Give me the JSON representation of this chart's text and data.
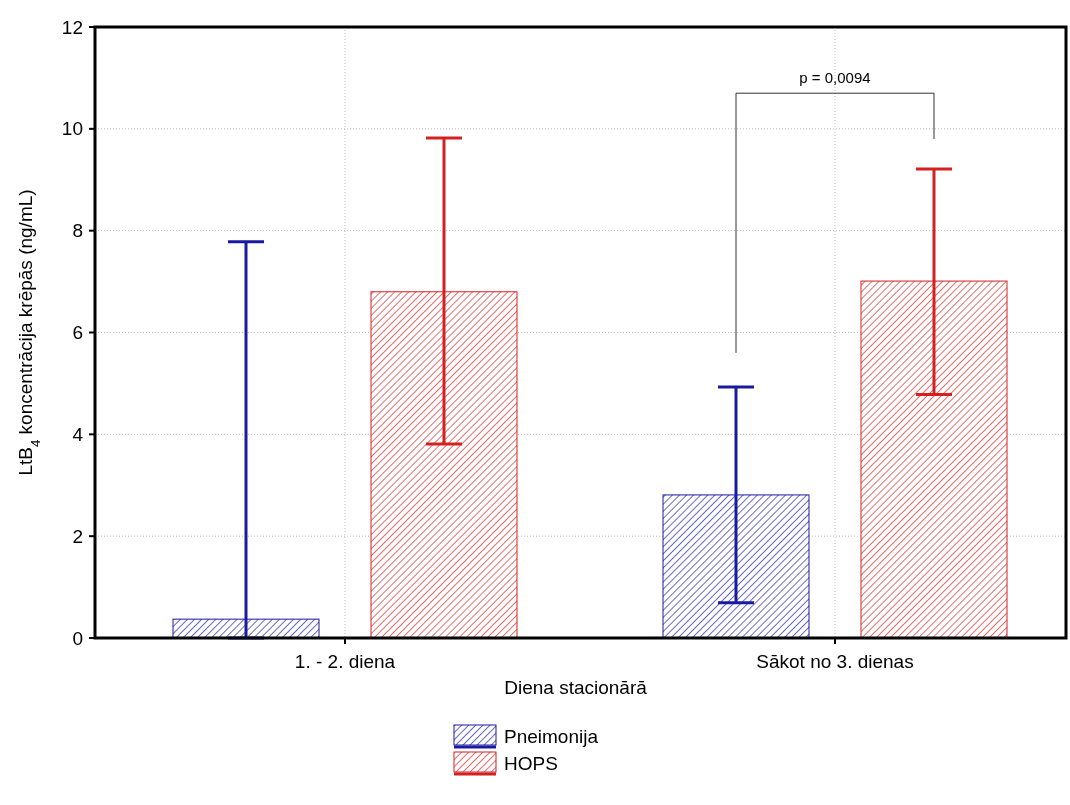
{
  "chart_data": {
    "type": "bar",
    "xlabel": "Diena stacionārā",
    "ylabel": "LtB$_{4}$ koncentrācija krēpās (ng/mL)",
    "categories": [
      "1. - 2. diena",
      "Sākot no 3. dienas"
    ],
    "series": [
      {
        "name": "Pneimonija",
        "color": "#1a1aa0",
        "values": [
          0.37,
          2.81
        ],
        "errors": [
          [
            0,
            7.78
          ],
          [
            0.69,
            4.93
          ]
        ]
      },
      {
        "name": "HOPS",
        "color": "#d42020",
        "values": [
          6.8,
          7.01
        ],
        "errors": [
          [
            3.81,
            9.82
          ],
          [
            4.78,
            9.21
          ]
        ]
      }
    ],
    "ylim": [
      0,
      12
    ],
    "yticks": [
      0,
      2,
      4,
      6,
      8,
      10,
      12
    ],
    "grid": true,
    "legend": "bottom",
    "annotations": [
      "p = 0,0094"
    ]
  }
}
